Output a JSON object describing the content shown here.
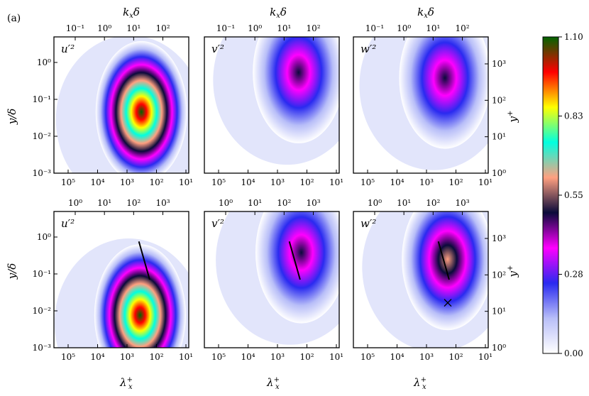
{
  "figure": {
    "label": "(a)"
  },
  "chart_data": {
    "type": "heatmap",
    "colorbar": {
      "ticks": [
        "1.10",
        "0.83",
        "0.55",
        "0.28",
        "0.00"
      ],
      "range": [
        0.0,
        1.1
      ],
      "colors": [
        "#ffffff",
        "#b8bef8",
        "#2a2af0",
        "#ff00ff",
        "#0a0a3a",
        "#ffa080",
        "#00ffe0",
        "#ffff00",
        "#ff0000",
        "#006400"
      ]
    },
    "rows": [
      {
        "top_axis": {
          "label": "k_xδ",
          "ticks": [
            "10⁻¹",
            "10⁰",
            "10¹",
            "10²"
          ]
        },
        "bottom_ticks": [
          "10⁵",
          "10⁴",
          "10³",
          "10²",
          "10¹"
        ],
        "left_label": "y/δ",
        "left_ticks": [
          "10⁰",
          "10⁻¹",
          "10⁻²",
          "10⁻³"
        ],
        "right_label": "y⁺",
        "right_ticks": [
          "10³",
          "10²",
          "10¹",
          "10⁰"
        ],
        "panels": [
          {
            "tag": "u′²",
            "peak": 1.1,
            "peak_x": 0.67,
            "peak_y": 0.53
          },
          {
            "tag": "v′²",
            "peak": 0.5,
            "peak_x": 0.72,
            "peak_y": 0.24
          },
          {
            "tag": "w′²",
            "peak": 0.52,
            "peak_x": 0.7,
            "peak_y": 0.28
          }
        ]
      },
      {
        "top_ticks": [
          "10⁰",
          "10¹",
          "10²",
          "10³"
        ],
        "bottom_label": "λ_x⁺",
        "bottom_ticks": [
          "10⁵",
          "10⁴",
          "10³",
          "10²",
          "10¹"
        ],
        "left_label": "y/δ",
        "left_ticks": [
          "10⁰",
          "10⁻¹",
          "10⁻²",
          "10⁻³"
        ],
        "right_label": "y⁺",
        "right_ticks": [
          "10³",
          "10²",
          "10¹",
          "10⁰"
        ],
        "panels": [
          {
            "tag": "u′²",
            "peak": 1.1,
            "peak_x": 0.66,
            "peak_y": 0.74,
            "has_line": true
          },
          {
            "tag": "v′²",
            "peak": 0.5,
            "peak_x": 0.74,
            "peak_y": 0.28,
            "has_line": true
          },
          {
            "tag": "w′²",
            "peak": 0.55,
            "peak_x": 0.72,
            "peak_y": 0.33,
            "has_line": true,
            "has_marker": true
          }
        ]
      }
    ]
  }
}
